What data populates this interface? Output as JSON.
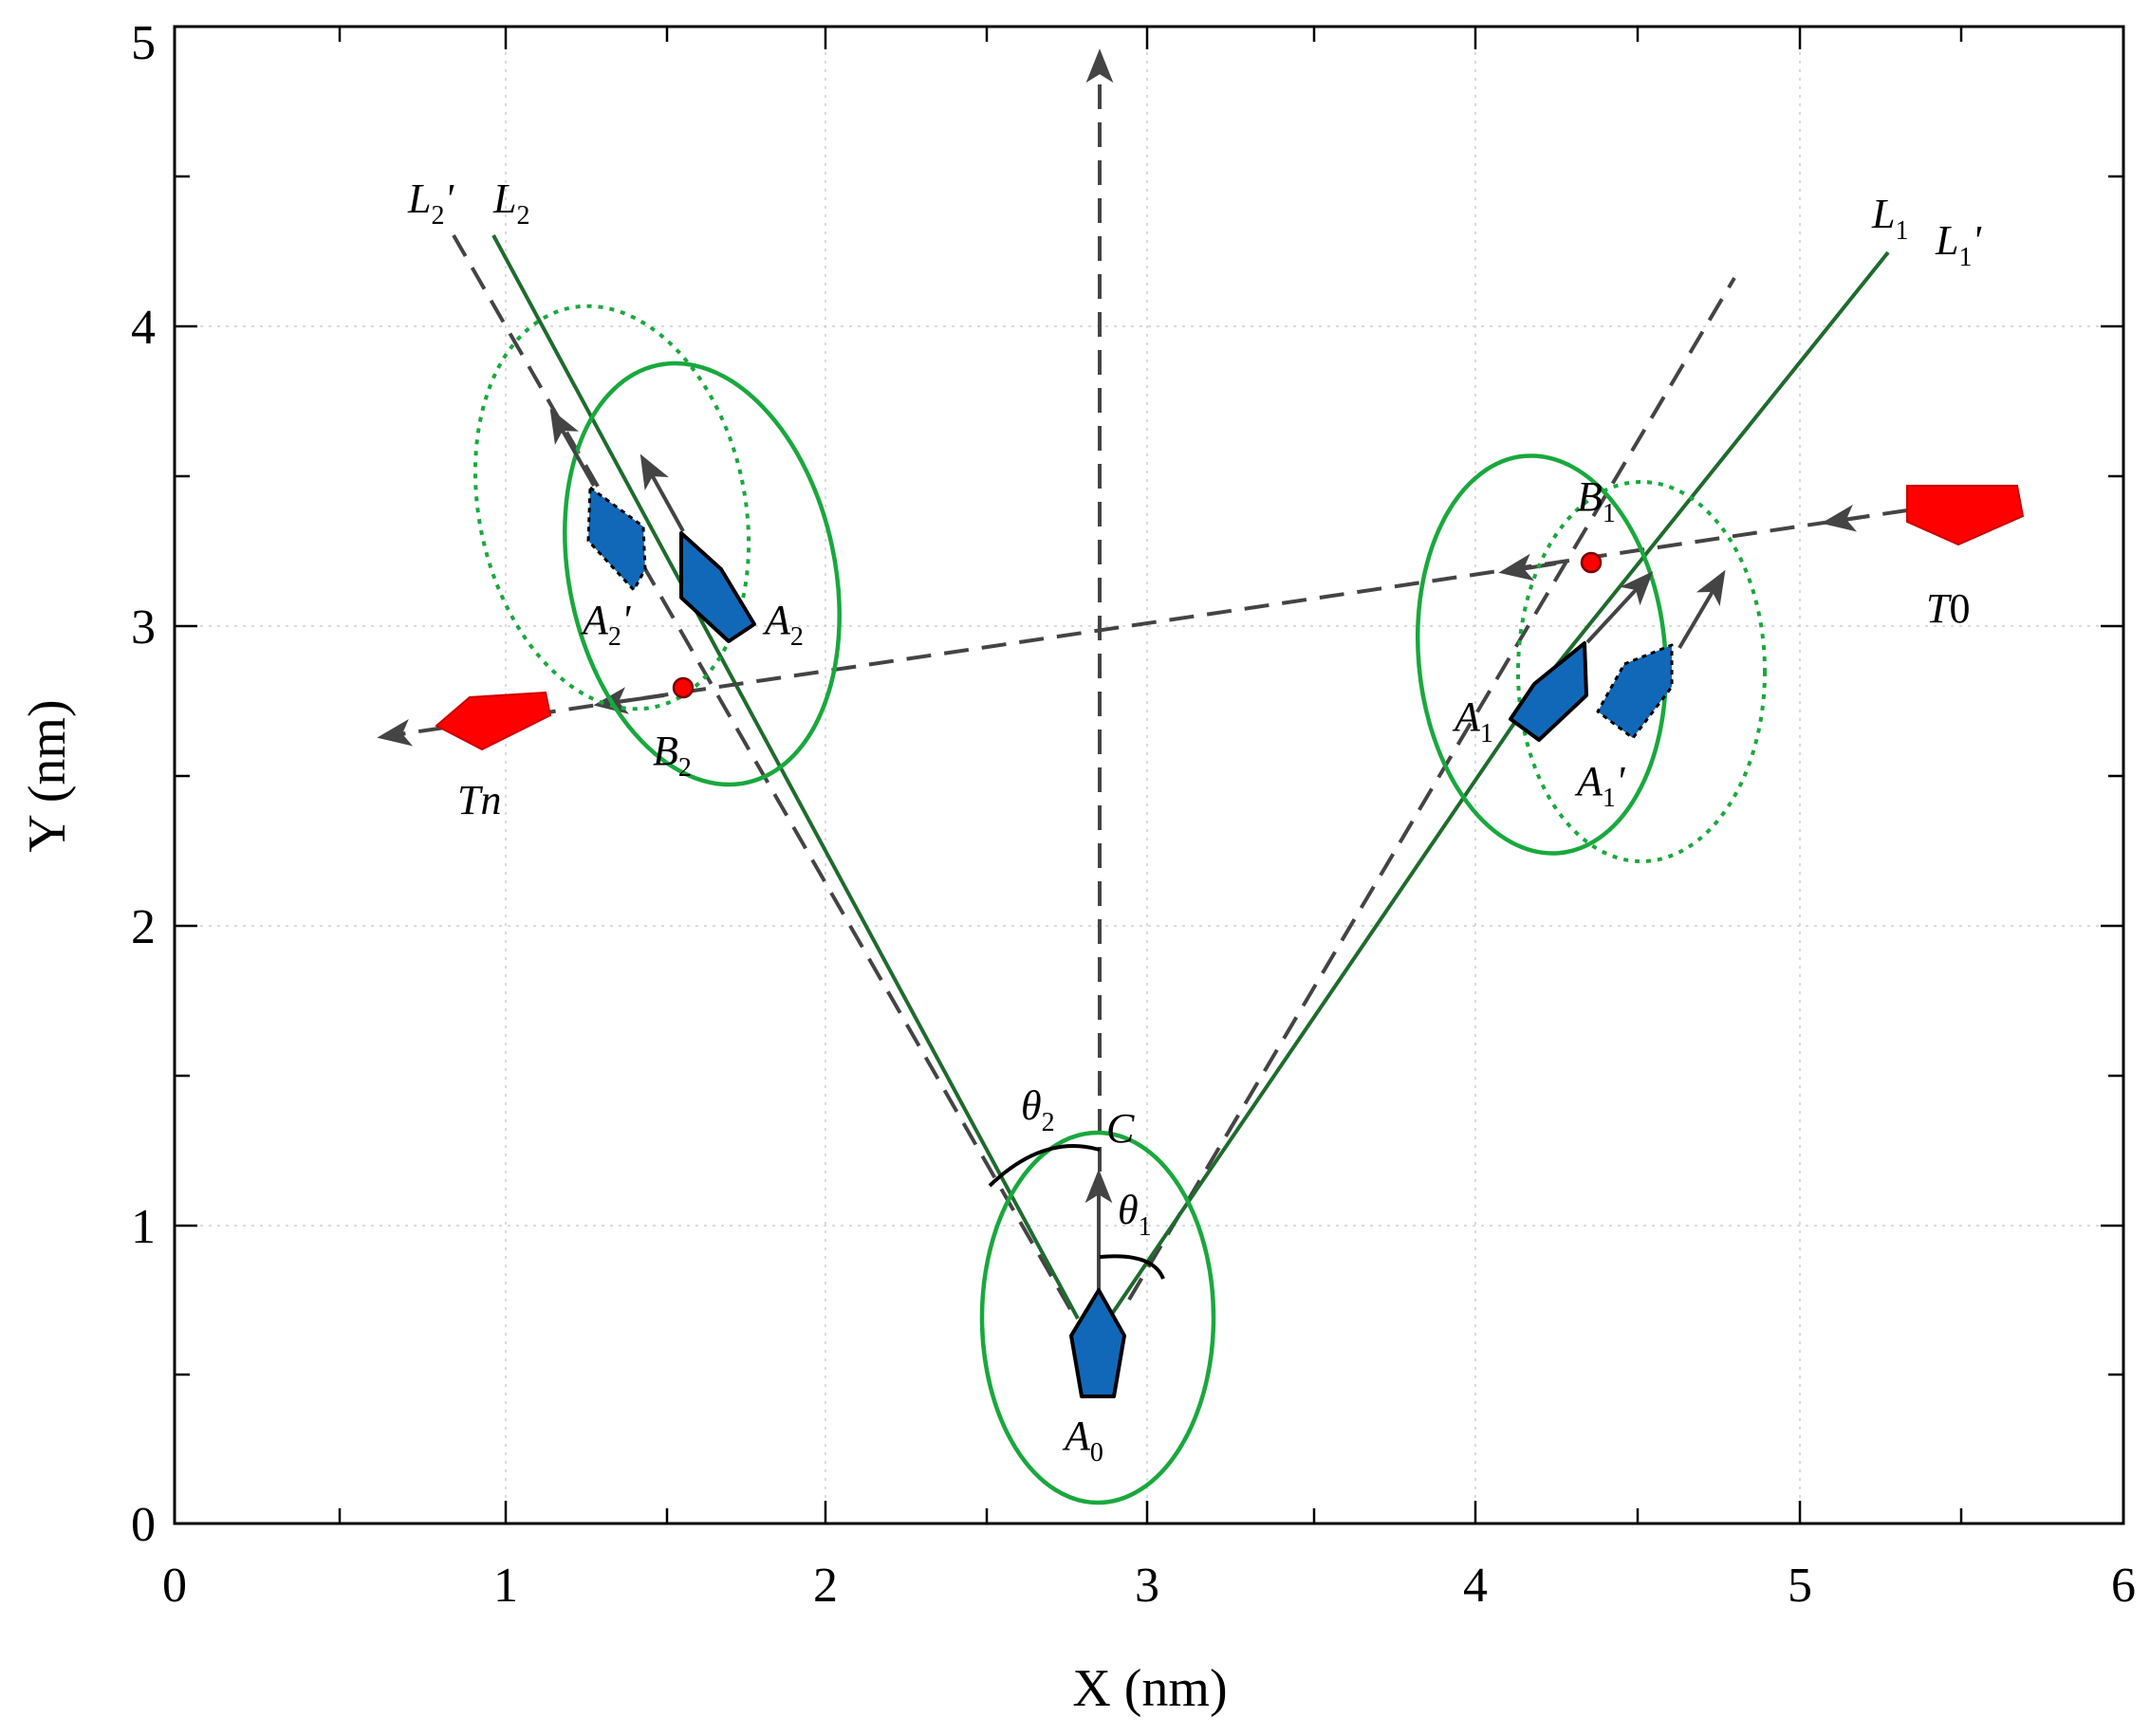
{
  "axes": {
    "x_title": "X (nm)",
    "y_title": "Y (nm)",
    "xlim": [
      0,
      6
    ],
    "ylim": [
      0,
      5
    ],
    "x_ticks": [
      "0",
      "1",
      "2",
      "3",
      "4",
      "5",
      "6"
    ],
    "y_ticks": [
      "0",
      "1",
      "2",
      "3",
      "4",
      "5"
    ],
    "grid": true
  },
  "labels": {
    "L1": {
      "main": "L",
      "sub": "1",
      "suffix": ""
    },
    "L1p": {
      "main": "L",
      "sub": "1",
      "suffix": "'"
    },
    "L2": {
      "main": "L",
      "sub": "2",
      "suffix": ""
    },
    "L2p": {
      "main": "L",
      "sub": "2",
      "suffix": "'"
    },
    "A0": {
      "main": "A",
      "sub": "0",
      "suffix": ""
    },
    "A1": {
      "main": "A",
      "sub": "1",
      "suffix": ""
    },
    "A1p": {
      "main": "A",
      "sub": "1",
      "suffix": "'"
    },
    "A2": {
      "main": "A",
      "sub": "2",
      "suffix": ""
    },
    "A2p": {
      "main": "A",
      "sub": "2",
      "suffix": "'"
    },
    "B1": {
      "main": "B",
      "sub": "1",
      "suffix": ""
    },
    "B2": {
      "main": "B",
      "sub": "2",
      "suffix": ""
    },
    "theta1": {
      "main": "θ",
      "sub": "1",
      "suffix": ""
    },
    "theta2": {
      "main": "θ",
      "sub": "2",
      "suffix": ""
    },
    "C": {
      "main": "C",
      "sub": "",
      "suffix": ""
    },
    "T0": {
      "main": "T",
      "sub": "",
      "suffix": "0"
    },
    "Tn": {
      "main": "Tn",
      "sub": "",
      "suffix": ""
    }
  },
  "colors": {
    "own_ship": "#1268b8",
    "target_ship": "#ff0000",
    "ship_domain": "#19a83d",
    "planned_route": "#1f6b2e",
    "dashed_route": "#444444"
  }
}
